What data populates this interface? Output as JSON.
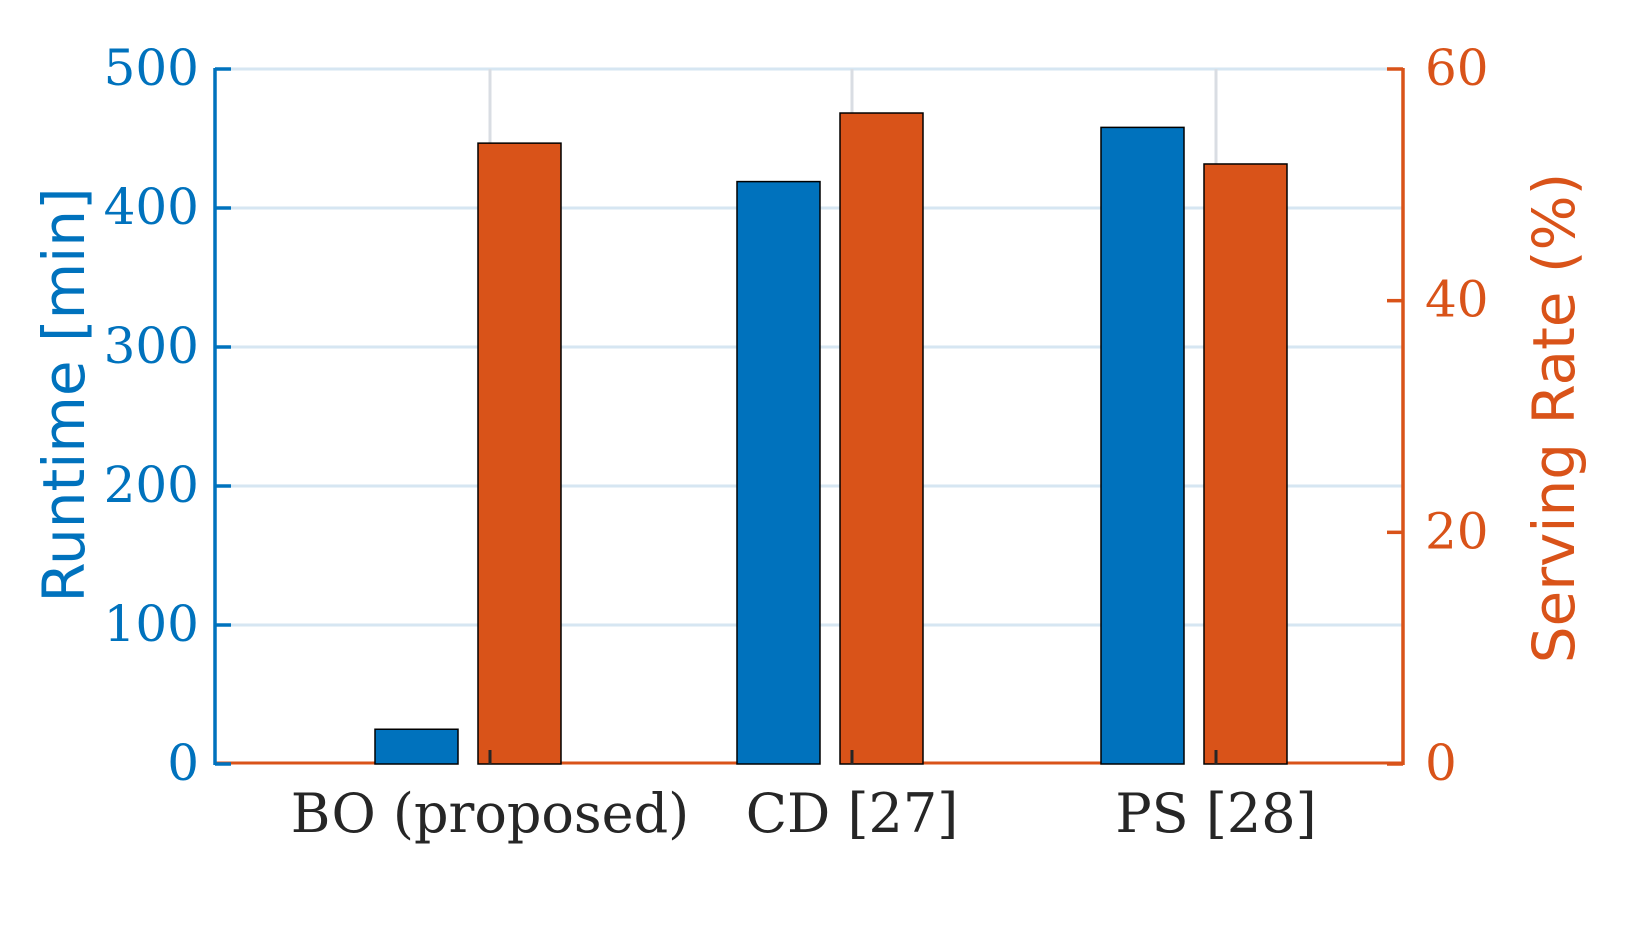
{
  "chart_data": {
    "type": "bar",
    "categories": [
      "BO (proposed)",
      "CD [27]",
      "PS [28]"
    ],
    "ylabel": "Runtime [min]",
    "y2label": "Serving Rate (%)",
    "ylim": [
      0,
      500
    ],
    "y2lim": [
      0,
      60
    ],
    "yticks": [
      "0",
      "100",
      "200",
      "300",
      "400",
      "500"
    ],
    "y2ticks": [
      "0",
      "20",
      "40",
      "60"
    ],
    "grid": true,
    "series": [
      {
        "axis": "left",
        "color": "#0072BD",
        "values": [
          25,
          419,
          458
        ]
      },
      {
        "axis": "right",
        "color": "#D95319",
        "values": [
          53.6,
          56.2,
          51.8
        ]
      }
    ],
    "axis_colors": {
      "left": "#0072BD",
      "right": "#D95319",
      "grid_h": "#D6E6F2",
      "grid_v": "#D9DDE3",
      "text": "#262626"
    }
  }
}
